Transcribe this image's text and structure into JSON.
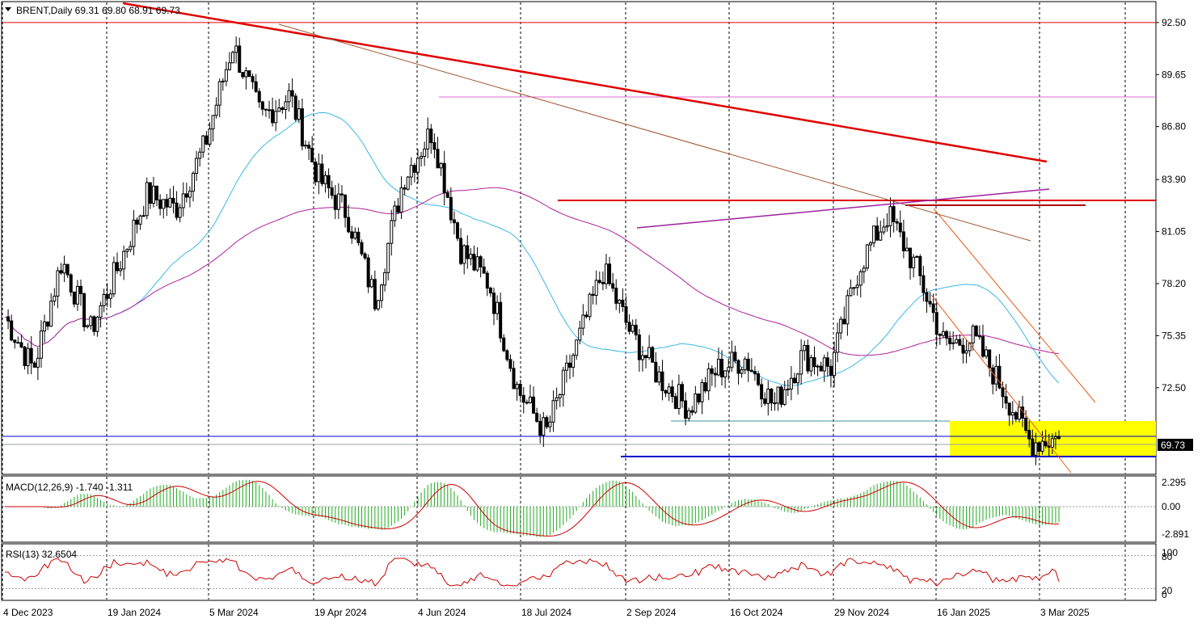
{
  "header": {
    "symbol": "BRENT",
    "timeframe": "Daily",
    "ohlc": "69.31 69.80 68.91 69.73",
    "title_text": "BRENT,Daily  69.31 69.80 68.91 69.73"
  },
  "price_axis": {
    "ticks": [
      "92.50",
      "89.65",
      "86.80",
      "83.90",
      "81.05",
      "78.20",
      "75.35",
      "72.50"
    ],
    "current_price": "69.73",
    "current_price_bg": "#000000"
  },
  "macd": {
    "label": "MACD(12,26,9) -1.740 -1.311",
    "ticks": [
      "2.295",
      "0.00",
      "-2.891"
    ],
    "histogram_color": "#22aa22",
    "signal_color": "#cc0000"
  },
  "rsi": {
    "label": "RSI(13) 32.6504",
    "ticks": [
      "100",
      "80",
      "20",
      "0"
    ],
    "line_color": "#cc0000"
  },
  "time_axis": {
    "labels": [
      "4 Dec 2023",
      "19 Jan 2024",
      "5 Mar 2024",
      "19 Apr 2024",
      "4 Jun 2024",
      "18 Jul 2024",
      "2 Sep 2024",
      "16 Oct 2024",
      "29 Nov 2024",
      "16 Jan 2025",
      "3 Mar 2025"
    ]
  },
  "colors": {
    "ma_fast": "#3bb7e8",
    "ma_slow": "#b0209a",
    "resistance": "#e00000",
    "support": "#0000cc",
    "zone": "#ffff00",
    "channel": "#e85a1a",
    "trendline_brown": "#a0522d"
  },
  "chart_data": {
    "type": "candlestick",
    "title": "BRENT,Daily",
    "ylim": [
      67.8,
      93.6
    ],
    "x": [
      "4 Dec 2023",
      "19 Jan 2024",
      "5 Mar 2024",
      "19 Apr 2024",
      "4 Jun 2024",
      "18 Jul 2024",
      "2 Sep 2024",
      "16 Oct 2024",
      "29 Nov 2024",
      "16 Jan 2025",
      "3 Mar 2025"
    ],
    "close_path": [
      76.4,
      73.5,
      79.5,
      75.6,
      79.2,
      83.1,
      82.3,
      85.7,
      91.3,
      87.3,
      88.5,
      84.0,
      82.1,
      77.3,
      84.0,
      86.6,
      80.1,
      78.2,
      72.4,
      70.0,
      74.5,
      78.9,
      75.4,
      73.0,
      71.4,
      73.5,
      74.1,
      71.5,
      74.3,
      73.6,
      79.2,
      82.0,
      79.0,
      74.8,
      75.2,
      72.5,
      69.5,
      69.73
    ],
    "support_levels": [
      69.0,
      71.0
    ],
    "resistance_levels": [
      92.5,
      83.0
    ],
    "current": {
      "open": 69.31,
      "high": 69.8,
      "low": 68.91,
      "close": 69.73
    },
    "macd": {
      "value": -1.74,
      "signal": -1.311
    },
    "rsi": {
      "period": 13,
      "value": 32.6504
    },
    "grid": true
  }
}
